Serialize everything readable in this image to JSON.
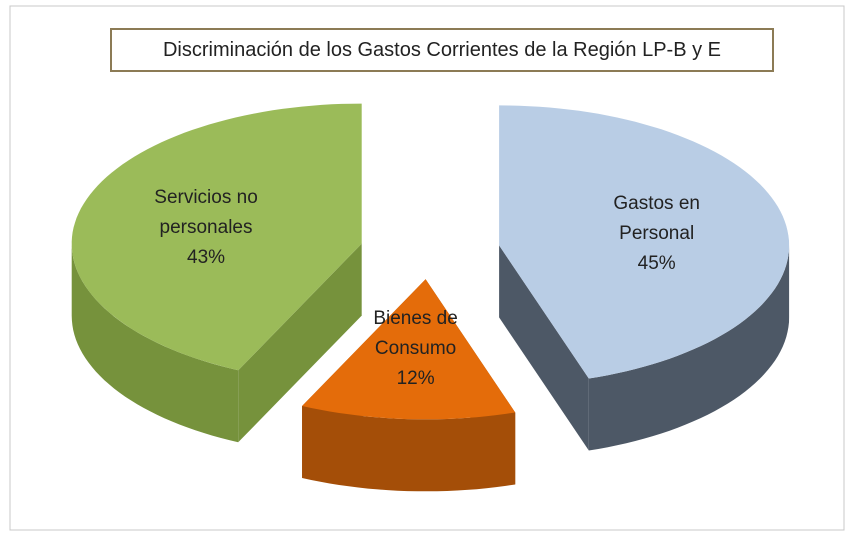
{
  "chart_data": {
    "type": "pie3d",
    "title": "Discriminación de los Gastos Corrientes de la Región LP-B y E",
    "categories": [
      "Gastos en Personal",
      "Bienes de Consumo",
      "Servicios no personales"
    ],
    "values": [
      45,
      12,
      43
    ],
    "value_labels": [
      "45%",
      "12%",
      "43%"
    ],
    "colors": [
      "#b9cde5",
      "#e46c0a",
      "#9bbb59"
    ],
    "side_colors": [
      "#4d5866",
      "#a44e08",
      "#76923c"
    ]
  }
}
